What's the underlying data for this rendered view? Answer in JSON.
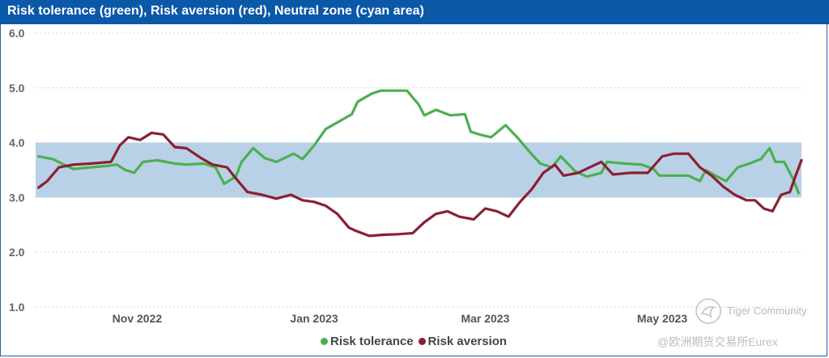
{
  "header": {
    "title": "Risk tolerance (green), Risk aversion (red), Neutral zone (cyan area)"
  },
  "colors": {
    "risk_tolerance": "#4caf50",
    "risk_aversion": "#8b1f32",
    "neutral_zone": "#b9d1e6",
    "header_bg": "#0b58a8"
  },
  "legend": {
    "items": [
      {
        "label": "Risk tolerance",
        "color": "#4caf50"
      },
      {
        "label": "Risk aversion",
        "color": "#8b1f32"
      }
    ]
  },
  "watermark": {
    "name": "Tiger Community",
    "sub": "@欧洲期货交易所Eurex",
    "icon": "tiger-logo-icon"
  },
  "chart_data": {
    "type": "line",
    "title": "Risk tolerance (green), Risk aversion (red), Neutral zone (cyan area)",
    "xlabel": "",
    "ylabel": "",
    "ylim": [
      1.0,
      6.0
    ],
    "y_ticks": [
      "1.0",
      "2.0",
      "3.0",
      "4.0",
      "5.0",
      "6.0"
    ],
    "x_ticks": [
      {
        "label": "Nov 2022",
        "date": "2022-11-01"
      },
      {
        "label": "Jan 2023",
        "date": "2023-01-01"
      },
      {
        "label": "Mar 2023",
        "date": "2023-03-01"
      },
      {
        "label": "May 2023",
        "date": "2023-05-01"
      }
    ],
    "xlim": [
      "2022-09-27",
      "2023-06-18"
    ],
    "neutral_zone": [
      3.0,
      4.0
    ],
    "grid": "horizontal dotted",
    "legend_position": "bottom",
    "series": [
      {
        "name": "Risk tolerance",
        "color": "#4caf50",
        "points": [
          [
            "2022-09-28",
            3.75
          ],
          [
            "2022-10-03",
            3.7
          ],
          [
            "2022-10-06",
            3.62
          ],
          [
            "2022-10-10",
            3.52
          ],
          [
            "2022-10-16",
            3.55
          ],
          [
            "2022-10-22",
            3.58
          ],
          [
            "2022-10-25",
            3.6
          ],
          [
            "2022-10-28",
            3.5
          ],
          [
            "2022-10-31",
            3.45
          ],
          [
            "2022-11-03",
            3.65
          ],
          [
            "2022-11-08",
            3.68
          ],
          [
            "2022-11-14",
            3.62
          ],
          [
            "2022-11-18",
            3.6
          ],
          [
            "2022-11-24",
            3.62
          ],
          [
            "2022-11-28",
            3.55
          ],
          [
            "2022-12-01",
            3.25
          ],
          [
            "2022-12-05",
            3.38
          ],
          [
            "2022-12-07",
            3.65
          ],
          [
            "2022-12-11",
            3.9
          ],
          [
            "2022-12-15",
            3.72
          ],
          [
            "2022-12-19",
            3.65
          ],
          [
            "2022-12-25",
            3.8
          ],
          [
            "2022-12-28",
            3.7
          ],
          [
            "2023-01-01",
            3.95
          ],
          [
            "2023-01-05",
            4.25
          ],
          [
            "2023-01-10",
            4.4
          ],
          [
            "2023-01-14",
            4.52
          ],
          [
            "2023-01-16",
            4.75
          ],
          [
            "2023-01-21",
            4.9
          ],
          [
            "2023-01-24",
            4.95
          ],
          [
            "2023-02-02",
            4.95
          ],
          [
            "2023-02-06",
            4.7
          ],
          [
            "2023-02-08",
            4.5
          ],
          [
            "2023-02-12",
            4.6
          ],
          [
            "2023-02-17",
            4.5
          ],
          [
            "2023-02-22",
            4.52
          ],
          [
            "2023-02-24",
            4.2
          ],
          [
            "2023-02-27",
            4.15
          ],
          [
            "2023-03-03",
            4.1
          ],
          [
            "2023-03-08",
            4.32
          ],
          [
            "2023-03-12",
            4.1
          ],
          [
            "2023-03-16",
            3.85
          ],
          [
            "2023-03-20",
            3.62
          ],
          [
            "2023-03-24",
            3.55
          ],
          [
            "2023-03-27",
            3.75
          ],
          [
            "2023-04-01",
            3.48
          ],
          [
            "2023-04-05",
            3.38
          ],
          [
            "2023-04-10",
            3.45
          ],
          [
            "2023-04-12",
            3.65
          ],
          [
            "2023-04-18",
            3.62
          ],
          [
            "2023-04-24",
            3.6
          ],
          [
            "2023-04-28",
            3.52
          ],
          [
            "2023-04-30",
            3.4
          ],
          [
            "2023-05-05",
            3.4
          ],
          [
            "2023-05-10",
            3.4
          ],
          [
            "2023-05-14",
            3.3
          ],
          [
            "2023-05-16",
            3.5
          ],
          [
            "2023-05-20",
            3.38
          ],
          [
            "2023-05-23",
            3.3
          ],
          [
            "2023-05-27",
            3.55
          ],
          [
            "2023-05-31",
            3.62
          ],
          [
            "2023-06-04",
            3.7
          ],
          [
            "2023-06-07",
            3.9
          ],
          [
            "2023-06-09",
            3.65
          ],
          [
            "2023-06-12",
            3.65
          ],
          [
            "2023-06-15",
            3.35
          ],
          [
            "2023-06-17",
            3.08
          ]
        ]
      },
      {
        "name": "Risk aversion",
        "color": "#8b1f32",
        "points": [
          [
            "2022-09-28",
            3.18
          ],
          [
            "2022-10-01",
            3.3
          ],
          [
            "2022-10-05",
            3.55
          ],
          [
            "2022-10-10",
            3.6
          ],
          [
            "2022-10-16",
            3.62
          ],
          [
            "2022-10-23",
            3.65
          ],
          [
            "2022-10-26",
            3.95
          ],
          [
            "2022-10-29",
            4.1
          ],
          [
            "2022-11-02",
            4.05
          ],
          [
            "2022-11-06",
            4.18
          ],
          [
            "2022-11-10",
            4.15
          ],
          [
            "2022-11-14",
            3.92
          ],
          [
            "2022-11-18",
            3.9
          ],
          [
            "2022-11-23",
            3.72
          ],
          [
            "2022-11-27",
            3.6
          ],
          [
            "2022-12-02",
            3.55
          ],
          [
            "2022-12-05",
            3.35
          ],
          [
            "2022-12-09",
            3.1
          ],
          [
            "2022-12-14",
            3.05
          ],
          [
            "2022-12-19",
            2.98
          ],
          [
            "2022-12-24",
            3.05
          ],
          [
            "2022-12-28",
            2.95
          ],
          [
            "2023-01-01",
            2.92
          ],
          [
            "2023-01-05",
            2.85
          ],
          [
            "2023-01-09",
            2.7
          ],
          [
            "2023-01-13",
            2.45
          ],
          [
            "2023-01-15",
            2.4
          ],
          [
            "2023-01-20",
            2.3
          ],
          [
            "2023-01-25",
            2.32
          ],
          [
            "2023-01-30",
            2.33
          ],
          [
            "2023-02-04",
            2.35
          ],
          [
            "2023-02-08",
            2.55
          ],
          [
            "2023-02-12",
            2.7
          ],
          [
            "2023-02-16",
            2.75
          ],
          [
            "2023-02-20",
            2.65
          ],
          [
            "2023-02-25",
            2.6
          ],
          [
            "2023-03-01",
            2.8
          ],
          [
            "2023-03-05",
            2.75
          ],
          [
            "2023-03-09",
            2.65
          ],
          [
            "2023-03-13",
            2.92
          ],
          [
            "2023-03-17",
            3.15
          ],
          [
            "2023-03-21",
            3.45
          ],
          [
            "2023-03-25",
            3.6
          ],
          [
            "2023-03-28",
            3.4
          ],
          [
            "2023-04-02",
            3.45
          ],
          [
            "2023-04-06",
            3.55
          ],
          [
            "2023-04-10",
            3.65
          ],
          [
            "2023-04-14",
            3.42
          ],
          [
            "2023-04-20",
            3.45
          ],
          [
            "2023-04-26",
            3.45
          ],
          [
            "2023-05-01",
            3.75
          ],
          [
            "2023-05-05",
            3.8
          ],
          [
            "2023-05-10",
            3.8
          ],
          [
            "2023-05-14",
            3.55
          ],
          [
            "2023-05-18",
            3.4
          ],
          [
            "2023-05-22",
            3.2
          ],
          [
            "2023-05-26",
            3.05
          ],
          [
            "2023-05-30",
            2.95
          ],
          [
            "2023-06-02",
            2.95
          ],
          [
            "2023-06-05",
            2.8
          ],
          [
            "2023-06-08",
            2.75
          ],
          [
            "2023-06-11",
            3.05
          ],
          [
            "2023-06-14",
            3.1
          ],
          [
            "2023-06-16",
            3.4
          ],
          [
            "2023-06-18",
            3.68
          ]
        ]
      }
    ]
  }
}
